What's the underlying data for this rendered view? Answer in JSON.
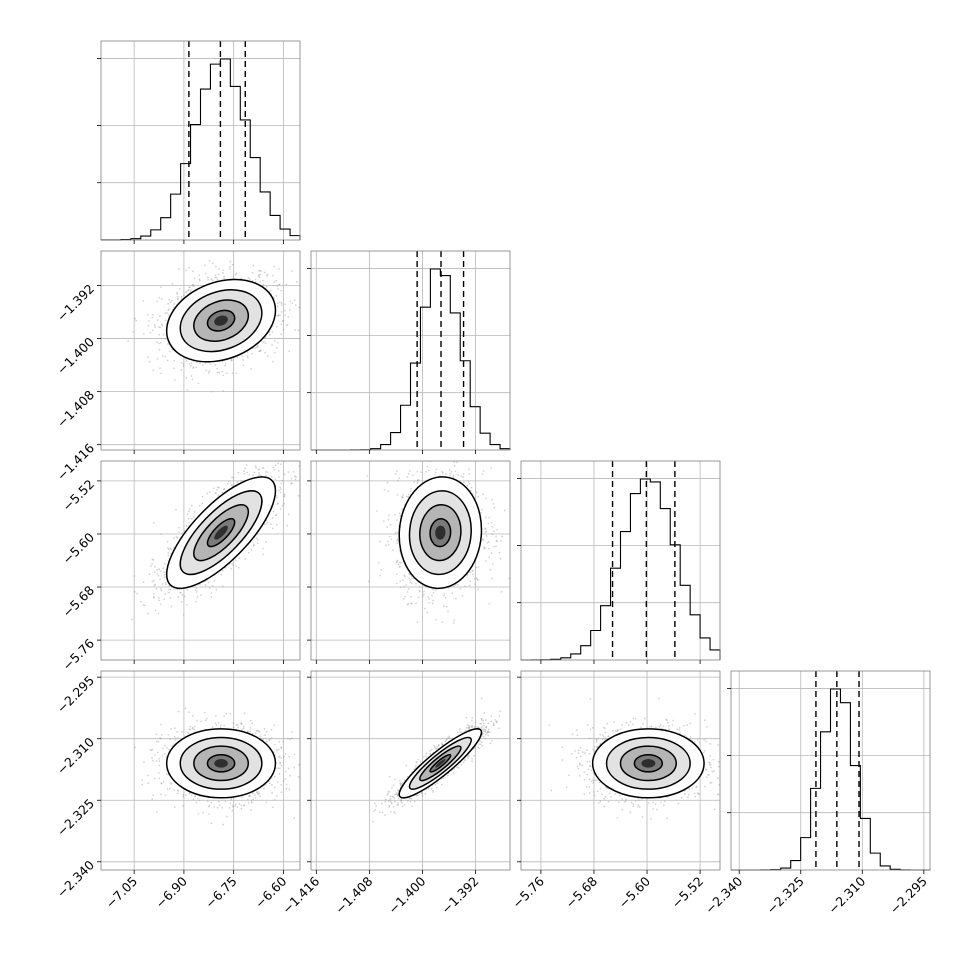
{
  "chart_data": {
    "type": "corner",
    "params": [
      {
        "range": [
          -7.15,
          -6.55
        ],
        "ticks": [
          -7.05,
          -6.9,
          -6.75,
          -6.6
        ],
        "tick_labels": [
          "−7.05",
          "−6.90",
          "−6.75",
          "−6.60"
        ],
        "mean": -6.788,
        "sd": 0.082,
        "quantiles": [
          -6.885,
          -6.79,
          -6.715
        ]
      },
      {
        "range": [
          -1.4168,
          -1.3868
        ],
        "ticks": [
          -1.416,
          -1.408,
          -1.4,
          -1.392
        ],
        "tick_labels": [
          "−1.416",
          "−1.408",
          "−1.400",
          "−1.392"
        ],
        "mean": -1.3973,
        "sd": 0.0031,
        "quantiles": [
          -1.4008,
          -1.3972,
          -1.3938
        ]
      },
      {
        "range": [
          -5.79,
          -5.49
        ],
        "ticks": [
          -5.76,
          -5.68,
          -5.6,
          -5.52
        ],
        "tick_labels": [
          "−5.76",
          "−5.68",
          "−5.60",
          "−5.52"
        ],
        "mean": -5.598,
        "sd": 0.042,
        "quantiles": [
          -5.652,
          -5.601,
          -5.558
        ]
      },
      {
        "range": [
          -2.342,
          -2.2935
        ],
        "ticks": [
          -2.34,
          -2.325,
          -2.31,
          -2.295
        ],
        "tick_labels": [
          "−2.340",
          "−2.325",
          "−2.310",
          "−2.295"
        ],
        "mean": -2.316,
        "sd": 0.0042,
        "quantiles": [
          -2.3213,
          -2.3162,
          -2.3108
        ]
      }
    ],
    "correlations": [
      [
        1,
        0.25,
        0.75,
        0.0
      ],
      [
        0.25,
        1,
        0.05,
        0.9
      ],
      [
        0.75,
        0.05,
        1,
        0.0
      ],
      [
        0.0,
        0.9,
        0.0,
        1
      ]
    ],
    "contour_levels_sigma": [
      0.5,
      1.0,
      1.5,
      2.0
    ],
    "grid": true
  }
}
